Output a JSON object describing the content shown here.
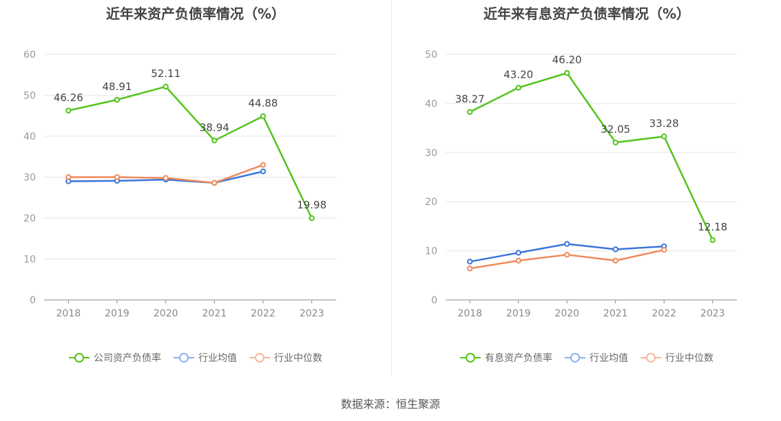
{
  "chart_data": [
    {
      "type": "line",
      "title": "近年来资产负债率情况（%）",
      "categories": [
        "2018",
        "2019",
        "2020",
        "2021",
        "2022",
        "2023"
      ],
      "ylim": [
        0,
        60
      ],
      "yticks": [
        "0",
        "10",
        "20",
        "30",
        "40",
        "50",
        "60"
      ],
      "grid": true,
      "legend_position": "bottom",
      "series": [
        {
          "name": "公司资产负债率",
          "color": "#52c41a",
          "values": [
            46.26,
            48.91,
            52.11,
            38.94,
            44.88,
            19.98
          ],
          "labels": [
            "46.26",
            "48.91",
            "52.11",
            "38.94",
            "44.88",
            "19.98"
          ]
        },
        {
          "name": "行业均值",
          "color": "#3a74d9",
          "values": [
            29.0,
            29.1,
            29.4,
            28.6,
            31.4,
            null
          ],
          "labels": []
        },
        {
          "name": "行业中位数",
          "color": "#f0895a",
          "values": [
            30.0,
            30.0,
            29.8,
            28.6,
            33.0,
            null
          ],
          "labels": []
        }
      ]
    },
    {
      "type": "line",
      "title": "近年来有息资产负债率情况（%）",
      "categories": [
        "2018",
        "2019",
        "2020",
        "2021",
        "2022",
        "2023"
      ],
      "ylim": [
        0,
        50
      ],
      "yticks": [
        "0",
        "10",
        "20",
        "30",
        "40",
        "50"
      ],
      "grid": true,
      "legend_position": "bottom",
      "series": [
        {
          "name": "有息资产负债率",
          "color": "#52c41a",
          "values": [
            38.27,
            43.2,
            46.2,
            32.05,
            33.28,
            12.18
          ],
          "labels": [
            "38.27",
            "43.20",
            "46.20",
            "32.05",
            "33.28",
            "12.18"
          ]
        },
        {
          "name": "行业均值",
          "color": "#3a74d9",
          "values": [
            7.8,
            9.6,
            11.4,
            10.3,
            10.9,
            null
          ],
          "labels": []
        },
        {
          "name": "行业中位数",
          "color": "#f0895a",
          "values": [
            6.4,
            8.0,
            9.2,
            8.0,
            10.2,
            null
          ],
          "labels": []
        }
      ]
    }
  ],
  "source": "数据来源：恒生聚源"
}
